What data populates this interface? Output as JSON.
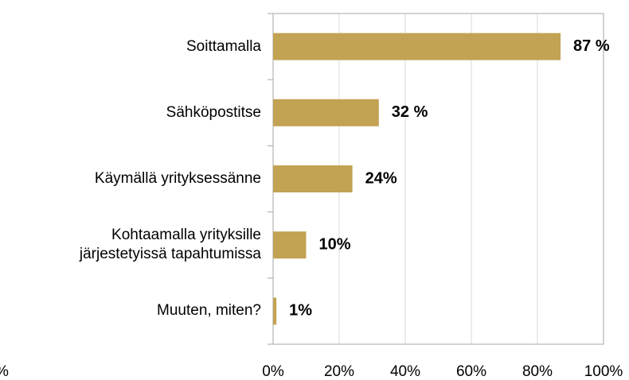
{
  "chart_data": {
    "type": "hbar",
    "categories": [
      "Soittamalla",
      "Sähköpostitse",
      "Käymällä yrityksessänne",
      "Kohtaamalla yrityksille\njärjestetyissä tapahtumissa",
      "Muuten, miten?"
    ],
    "values": [
      87,
      32,
      24,
      10,
      1
    ],
    "value_labels": [
      "87 %",
      "32 %",
      "24%",
      "10%",
      "1%"
    ],
    "color": "#c2a253",
    "xlim": [
      0,
      100
    ],
    "xticks": [
      {
        "value": 0,
        "label": "0%"
      },
      {
        "value": 20,
        "label": "20%"
      },
      {
        "value": 40,
        "label": "40%"
      },
      {
        "value": 60,
        "label": "60%"
      },
      {
        "value": 80,
        "label": "80%"
      },
      {
        "value": 100,
        "label": "100%"
      }
    ],
    "grid": true,
    "annotations": [
      "%"
    ]
  }
}
